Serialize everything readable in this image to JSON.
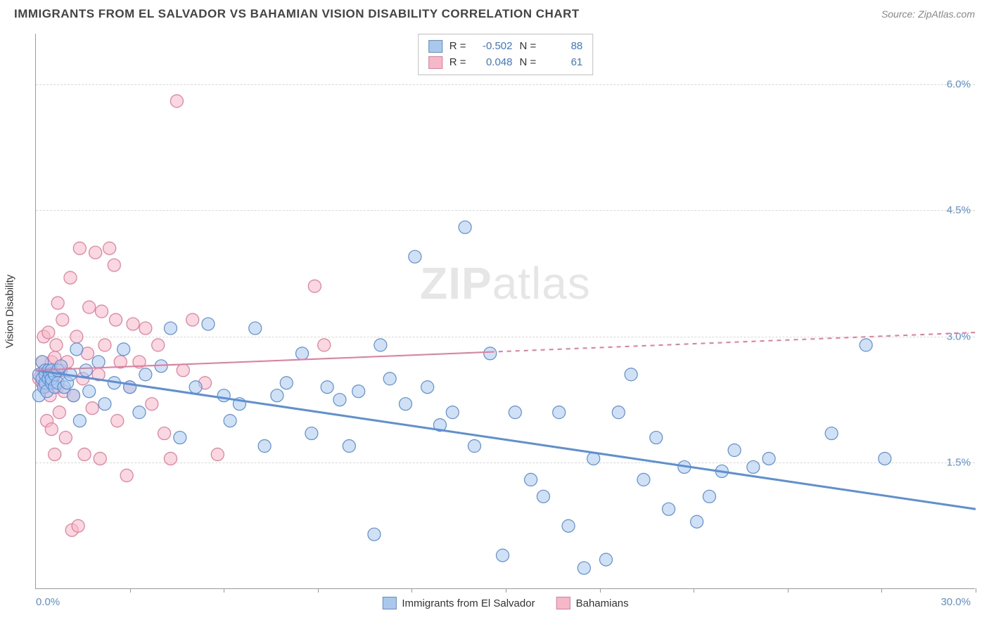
{
  "header": {
    "title": "IMMIGRANTS FROM EL SALVADOR VS BAHAMIAN VISION DISABILITY CORRELATION CHART",
    "source_prefix": "Source: ",
    "source": "ZipAtlas.com"
  },
  "chart": {
    "type": "scatter",
    "ylabel": "Vision Disability",
    "watermark": "ZIPatlas",
    "xlim": [
      0,
      30
    ],
    "ylim": [
      0,
      6.6
    ],
    "xticks": [
      3,
      6,
      9,
      12,
      15,
      18,
      21,
      24,
      27,
      30
    ],
    "yticks": [
      {
        "v": 1.5,
        "label": "1.5%"
      },
      {
        "v": 3.0,
        "label": "3.0%"
      },
      {
        "v": 4.5,
        "label": "4.5%"
      },
      {
        "v": 6.0,
        "label": "6.0%"
      }
    ],
    "xmin_label": "0.0%",
    "xmax_label": "30.0%",
    "background_color": "#ffffff",
    "grid_color": "#d8d8d8",
    "series": [
      {
        "id": "elsalvador",
        "label": "Immigrants from El Salvador",
        "color_fill": "#a9c8ec",
        "color_stroke": "#5b8fd6",
        "marker_radius": 9,
        "fill_opacity": 0.55,
        "R": "-0.502",
        "N": "88",
        "trend": {
          "x1": 0,
          "y1": 2.6,
          "x2": 30,
          "y2": 0.95,
          "width": 3,
          "dash_from_x": null
        },
        "points": [
          [
            0.1,
            2.55
          ],
          [
            0.1,
            2.3
          ],
          [
            0.2,
            2.5
          ],
          [
            0.2,
            2.7
          ],
          [
            0.25,
            2.4
          ],
          [
            0.3,
            2.45
          ],
          [
            0.3,
            2.6
          ],
          [
            0.3,
            2.55
          ],
          [
            0.35,
            2.35
          ],
          [
            0.4,
            2.5
          ],
          [
            0.4,
            2.6
          ],
          [
            0.45,
            2.55
          ],
          [
            0.5,
            2.45
          ],
          [
            0.5,
            2.5
          ],
          [
            0.5,
            2.6
          ],
          [
            0.6,
            2.4
          ],
          [
            0.6,
            2.55
          ],
          [
            0.7,
            2.6
          ],
          [
            0.7,
            2.45
          ],
          [
            0.8,
            2.65
          ],
          [
            0.9,
            2.4
          ],
          [
            1.0,
            2.45
          ],
          [
            1.1,
            2.55
          ],
          [
            1.2,
            2.3
          ],
          [
            1.3,
            2.85
          ],
          [
            1.4,
            2.0
          ],
          [
            1.6,
            2.6
          ],
          [
            1.7,
            2.35
          ],
          [
            2.0,
            2.7
          ],
          [
            2.2,
            2.2
          ],
          [
            2.5,
            2.45
          ],
          [
            2.8,
            2.85
          ],
          [
            3.0,
            2.4
          ],
          [
            3.3,
            2.1
          ],
          [
            3.5,
            2.55
          ],
          [
            4.0,
            2.65
          ],
          [
            4.3,
            3.1
          ],
          [
            4.6,
            1.8
          ],
          [
            5.1,
            2.4
          ],
          [
            5.5,
            3.15
          ],
          [
            6.0,
            2.3
          ],
          [
            6.2,
            2.0
          ],
          [
            6.5,
            2.2
          ],
          [
            7.0,
            3.1
          ],
          [
            7.3,
            1.7
          ],
          [
            7.7,
            2.3
          ],
          [
            8.0,
            2.45
          ],
          [
            8.5,
            2.8
          ],
          [
            8.8,
            1.85
          ],
          [
            9.3,
            2.4
          ],
          [
            9.7,
            2.25
          ],
          [
            10.0,
            1.7
          ],
          [
            10.3,
            2.35
          ],
          [
            10.8,
            0.65
          ],
          [
            11.0,
            2.9
          ],
          [
            11.3,
            2.5
          ],
          [
            11.8,
            2.2
          ],
          [
            12.1,
            3.95
          ],
          [
            12.5,
            2.4
          ],
          [
            12.9,
            1.95
          ],
          [
            13.3,
            2.1
          ],
          [
            13.7,
            4.3
          ],
          [
            14.0,
            1.7
          ],
          [
            14.5,
            2.8
          ],
          [
            14.9,
            0.4
          ],
          [
            15.3,
            2.1
          ],
          [
            15.8,
            1.3
          ],
          [
            16.2,
            1.1
          ],
          [
            16.7,
            2.1
          ],
          [
            17.0,
            0.75
          ],
          [
            17.5,
            0.25
          ],
          [
            17.8,
            1.55
          ],
          [
            18.2,
            0.35
          ],
          [
            18.6,
            2.1
          ],
          [
            19.0,
            2.55
          ],
          [
            19.4,
            1.3
          ],
          [
            19.8,
            1.8
          ],
          [
            20.2,
            0.95
          ],
          [
            20.7,
            1.45
          ],
          [
            21.1,
            0.8
          ],
          [
            21.5,
            1.1
          ],
          [
            21.9,
            1.4
          ],
          [
            22.3,
            1.65
          ],
          [
            22.9,
            1.45
          ],
          [
            23.4,
            1.55
          ],
          [
            25.4,
            1.85
          ],
          [
            26.5,
            2.9
          ],
          [
            27.1,
            1.55
          ]
        ]
      },
      {
        "id": "bahamians",
        "label": "Bahamians",
        "color_fill": "#f5b8c8",
        "color_stroke": "#e67a9b",
        "marker_radius": 9,
        "fill_opacity": 0.55,
        "R": "0.048",
        "N": "61",
        "trend": {
          "x1": 0,
          "y1": 2.6,
          "x2": 30,
          "y2": 3.05,
          "width": 2,
          "dash_from_x": 14.5
        },
        "points": [
          [
            0.1,
            2.5
          ],
          [
            0.2,
            2.7
          ],
          [
            0.2,
            2.45
          ],
          [
            0.25,
            3.0
          ],
          [
            0.3,
            2.6
          ],
          [
            0.3,
            2.4
          ],
          [
            0.35,
            2.0
          ],
          [
            0.4,
            2.55
          ],
          [
            0.4,
            3.05
          ],
          [
            0.45,
            2.3
          ],
          [
            0.5,
            2.7
          ],
          [
            0.5,
            1.9
          ],
          [
            0.55,
            2.5
          ],
          [
            0.6,
            2.75
          ],
          [
            0.6,
            1.6
          ],
          [
            0.65,
            2.9
          ],
          [
            0.7,
            2.4
          ],
          [
            0.7,
            3.4
          ],
          [
            0.75,
            2.1
          ],
          [
            0.8,
            2.6
          ],
          [
            0.85,
            3.2
          ],
          [
            0.9,
            2.35
          ],
          [
            0.95,
            1.8
          ],
          [
            1.0,
            2.7
          ],
          [
            1.1,
            3.7
          ],
          [
            1.15,
            0.7
          ],
          [
            1.2,
            2.3
          ],
          [
            1.3,
            3.0
          ],
          [
            1.35,
            0.75
          ],
          [
            1.4,
            4.05
          ],
          [
            1.5,
            2.5
          ],
          [
            1.55,
            1.6
          ],
          [
            1.65,
            2.8
          ],
          [
            1.7,
            3.35
          ],
          [
            1.8,
            2.15
          ],
          [
            1.9,
            4.0
          ],
          [
            2.0,
            2.55
          ],
          [
            2.05,
            1.55
          ],
          [
            2.1,
            3.3
          ],
          [
            2.2,
            2.9
          ],
          [
            2.35,
            4.05
          ],
          [
            2.5,
            3.85
          ],
          [
            2.55,
            3.2
          ],
          [
            2.6,
            2.0
          ],
          [
            2.7,
            2.7
          ],
          [
            2.9,
            1.35
          ],
          [
            3.0,
            2.4
          ],
          [
            3.1,
            3.15
          ],
          [
            3.3,
            2.7
          ],
          [
            3.5,
            3.1
          ],
          [
            3.7,
            2.2
          ],
          [
            3.9,
            2.9
          ],
          [
            4.1,
            1.85
          ],
          [
            4.3,
            1.55
          ],
          [
            4.5,
            5.8
          ],
          [
            4.7,
            2.6
          ],
          [
            5.0,
            3.2
          ],
          [
            5.4,
            2.45
          ],
          [
            5.8,
            1.6
          ],
          [
            8.9,
            3.6
          ],
          [
            9.2,
            2.9
          ]
        ]
      }
    ]
  }
}
